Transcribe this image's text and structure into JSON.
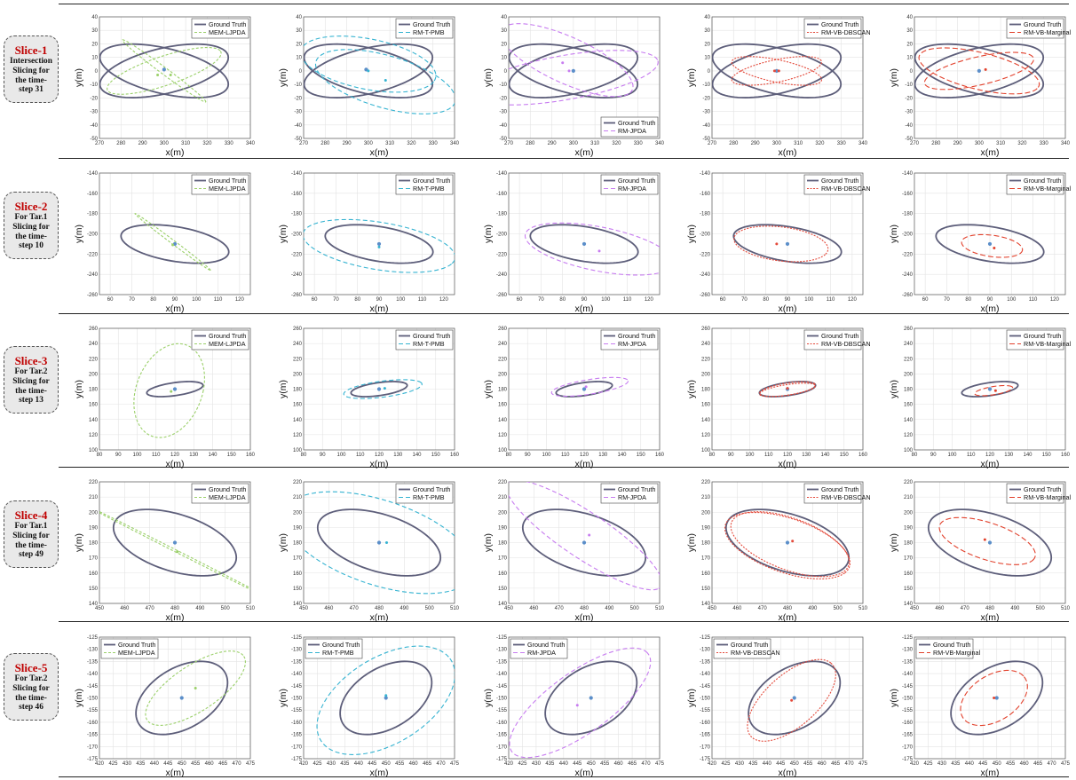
{
  "slices": [
    {
      "title": "Slice-1",
      "lines": [
        "Intersection",
        "Slicing for",
        "the time-",
        "step 31"
      ]
    },
    {
      "title": "Slice-2",
      "lines": [
        "For Tar.1",
        "Slicing for",
        "the time-",
        "step 10"
      ]
    },
    {
      "title": "Slice-3",
      "lines": [
        "For Tar.2",
        "Slicing for",
        "the time-",
        "step 13"
      ]
    },
    {
      "title": "Slice-4",
      "lines": [
        "For Tar.1",
        "Slicing for",
        "the time-",
        "step 49"
      ]
    },
    {
      "title": "Slice-5",
      "lines": [
        "For Tar.2",
        "Slicing for",
        "the time-",
        "step 46"
      ]
    }
  ],
  "colors": {
    "ground_truth": "#5d5e7a",
    "MEM-LJPDA": "#9bd06a",
    "RM-T-PMB": "#35b3d1",
    "RM-JPDA": "#c77cf0",
    "RM-VB-DBSCAN": "#e4493a",
    "RM-VB-Marginal": "#e2412c",
    "center_gt": "#5b8ec9"
  },
  "chart_data": {
    "type": "scatter",
    "xlabel": "x(m)",
    "ylabel": "y(m)",
    "grid": true,
    "methods": [
      {
        "name": "MEM-LJPDA",
        "dash": "3,2"
      },
      {
        "name": "RM-T-PMB",
        "dash": "5,3"
      },
      {
        "name": "RM-JPDA",
        "dash": "5,3"
      },
      {
        "name": "RM-VB-DBSCAN",
        "dash": "2,1.5"
      },
      {
        "name": "RM-VB-Marginal",
        "dash": "6,3"
      }
    ],
    "rows": [
      {
        "xlim": [
          270,
          340
        ],
        "ylim": [
          -50,
          40
        ],
        "xticks": [
          270,
          280,
          290,
          300,
          310,
          320,
          330,
          340
        ],
        "yticks": [
          -50,
          -40,
          -30,
          -20,
          -10,
          0,
          10,
          20,
          30,
          40
        ],
        "ground_truth": [
          {
            "cx": 300,
            "cy": 0,
            "a": 32,
            "b": 16,
            "angle": -25
          },
          {
            "cx": 300,
            "cy": 0,
            "a": 32,
            "b": 16,
            "angle": 25
          }
        ],
        "panels": [
          {
            "ellipses": [
              {
                "cx": 300,
                "cy": 0,
                "a": 30,
                "b": 10,
                "angle": 30
              },
              {
                "cx": 300,
                "cy": 0,
                "a": 30,
                "b": 2,
                "angle": -50
              }
            ],
            "centers": [
              {
                "x": 300,
                "y": 1,
                "gt": true
              },
              {
                "x": 297,
                "y": -3
              },
              {
                "x": 303,
                "y": -3
              }
            ],
            "legend": "top-right"
          },
          {
            "ellipses": [
              {
                "cx": 300,
                "cy": 5,
                "a": 33,
                "b": 18,
                "angle": -22
              },
              {
                "cx": 308,
                "cy": -8,
                "a": 36,
                "b": 18,
                "angle": -30
              }
            ],
            "centers": [
              {
                "x": 299,
                "y": 1,
                "gt": true
              },
              {
                "x": 300,
                "y": 0
              },
              {
                "x": 308,
                "y": -7
              }
            ],
            "legend": "top-right"
          },
          {
            "ellipses": [
              {
                "cx": 297,
                "cy": 8,
                "a": 38,
                "b": 15,
                "angle": -40
              },
              {
                "cx": 296,
                "cy": -5,
                "a": 45,
                "b": 16,
                "angle": 17
              }
            ],
            "centers": [
              {
                "x": 300,
                "y": 0,
                "gt": true
              },
              {
                "x": 298,
                "y": 0
              },
              {
                "x": 295,
                "y": 6
              }
            ],
            "legend": "bottom-right"
          },
          {
            "ellipses": [
              {
                "cx": 300,
                "cy": 0,
                "a": 22,
                "b": 8,
                "angle": -20
              },
              {
                "cx": 300,
                "cy": 0,
                "a": 22,
                "b": 8,
                "angle": 20
              }
            ],
            "centers": [
              {
                "x": 300,
                "y": 0,
                "gt": true
              },
              {
                "x": 299,
                "y": 0
              },
              {
                "x": 301,
                "y": 0
              }
            ],
            "legend": "top-right"
          },
          {
            "ellipses": [
              {
                "cx": 300,
                "cy": 0,
                "a": 30,
                "b": 13,
                "angle": -24
              },
              {
                "cx": 300,
                "cy": 0,
                "a": 27,
                "b": 10,
                "angle": 22
              }
            ],
            "centers": [
              {
                "x": 300,
                "y": 0,
                "gt": true
              },
              {
                "x": 303,
                "y": 1
              }
            ],
            "legend": "top-right"
          }
        ]
      },
      {
        "xlim": [
          55,
          125
        ],
        "ylim": [
          -260,
          -140
        ],
        "xticks": [
          60,
          70,
          80,
          90,
          100,
          110,
          120
        ],
        "yticks": [
          -260,
          -240,
          -220,
          -200,
          -180,
          -160,
          -140
        ],
        "ground_truth": [
          {
            "cx": 90,
            "cy": -210,
            "a": 27,
            "b": 16,
            "angle": -28
          }
        ],
        "panels": [
          {
            "ellipses": [
              {
                "cx": 89,
                "cy": -208,
                "a": 33,
                "b": 1.2,
                "angle": -58
              }
            ],
            "centers": [
              {
                "x": 90,
                "y": -210,
                "gt": true
              },
              {
                "x": 89,
                "y": -211
              }
            ],
            "legend": "top-right"
          },
          {
            "ellipses": [
              {
                "cx": 90,
                "cy": -212,
                "a": 38,
                "b": 22,
                "angle": -27
              }
            ],
            "centers": [
              {
                "x": 90,
                "y": -210,
                "gt": true
              },
              {
                "x": 90,
                "y": -213
              }
            ],
            "legend": "top-right"
          },
          {
            "ellipses": [
              {
                "cx": 97,
                "cy": -215,
                "a": 38,
                "b": 20,
                "angle": -30
              }
            ],
            "centers": [
              {
                "x": 90,
                "y": -210,
                "gt": true
              },
              {
                "x": 97,
                "y": -217
              }
            ],
            "legend": "top-right"
          },
          {
            "ellipses": [
              {
                "cx": 87,
                "cy": -210,
                "a": 23,
                "b": 16,
                "angle": -26
              }
            ],
            "centers": [
              {
                "x": 90,
                "y": -210,
                "gt": true
              },
              {
                "x": 85,
                "y": -210
              }
            ],
            "legend": "top-right"
          },
          {
            "ellipses": [
              {
                "cx": 91,
                "cy": -212,
                "a": 15,
                "b": 10,
                "angle": -27
              }
            ],
            "centers": [
              {
                "x": 90,
                "y": -210,
                "gt": true
              },
              {
                "x": 92,
                "y": -214
              }
            ],
            "legend": "top-right"
          }
        ]
      },
      {
        "xlim": [
          80,
          160
        ],
        "ylim": [
          100,
          260
        ],
        "xticks": [
          80,
          90,
          100,
          110,
          120,
          130,
          140,
          150,
          160
        ],
        "yticks": [
          100,
          120,
          140,
          160,
          180,
          200,
          220,
          240,
          260
        ],
        "ground_truth": [
          {
            "cx": 120,
            "cy": 180,
            "a": 16,
            "b": 8,
            "angle": 25
          }
        ],
        "panels": [
          {
            "ellipses": [
              {
                "cx": 117,
                "cy": 178,
                "a": 18,
                "b": 62,
                "angle": -5
              }
            ],
            "centers": [
              {
                "x": 120,
                "y": 180,
                "gt": true
              },
              {
                "x": 118,
                "y": 177
              }
            ],
            "legend": "top-right"
          },
          {
            "ellipses": [
              {
                "cx": 122,
                "cy": 180,
                "a": 22,
                "b": 10,
                "angle": 22
              }
            ],
            "centers": [
              {
                "x": 120,
                "y": 180,
                "gt": true
              },
              {
                "x": 123,
                "y": 181
              }
            ],
            "legend": "top-right"
          },
          {
            "ellipses": [
              {
                "cx": 123,
                "cy": 183,
                "a": 22,
                "b": 9,
                "angle": 25
              }
            ],
            "centers": [
              {
                "x": 120,
                "y": 180,
                "gt": true
              },
              {
                "x": 121,
                "y": 183
              }
            ],
            "legend": "top-right"
          },
          {
            "ellipses": [
              {
                "cx": 120,
                "cy": 180,
                "a": 16,
                "b": 7.5,
                "angle": 26
              },
              {
                "cx": 120,
                "cy": 179,
                "a": 16,
                "b": 6.5,
                "angle": 24
              }
            ],
            "centers": [
              {
                "x": 120,
                "y": 180,
                "gt": true
              },
              {
                "x": 120,
                "y": 181
              }
            ],
            "legend": "top-right"
          },
          {
            "ellipses": [
              {
                "cx": 122,
                "cy": 178,
                "a": 11,
                "b": 5,
                "angle": 27
              }
            ],
            "centers": [
              {
                "x": 120,
                "y": 180,
                "gt": true
              },
              {
                "x": 123,
                "y": 178
              }
            ],
            "legend": "top-right"
          }
        ]
      },
      {
        "xlim": [
          450,
          510
        ],
        "ylim": [
          140,
          220
        ],
        "xticks": [
          450,
          460,
          470,
          480,
          490,
          500,
          510
        ],
        "yticks": [
          140,
          150,
          160,
          170,
          180,
          190,
          200,
          210,
          220
        ],
        "ground_truth": [
          {
            "cx": 480,
            "cy": 180,
            "a": 28,
            "b": 17,
            "angle": -38
          }
        ],
        "panels": [
          {
            "ellipses": [
              {
                "cx": 481,
                "cy": 174,
                "a": 47,
                "b": 0.6,
                "angle": -40
              }
            ],
            "centers": [
              {
                "x": 480,
                "y": 180,
                "gt": true
              },
              {
                "x": 481,
                "y": 174
              }
            ],
            "legend": "top-right"
          },
          {
            "ellipses": [
              {
                "cx": 480,
                "cy": 180,
                "a": 44,
                "b": 25,
                "angle": -38
              }
            ],
            "centers": [
              {
                "x": 480,
                "y": 180,
                "gt": true
              },
              {
                "x": 483,
                "y": 180
              }
            ],
            "legend": "top-right"
          },
          {
            "ellipses": [
              {
                "cx": 480,
                "cy": 185,
                "a": 46,
                "b": 12,
                "angle": -50
              }
            ],
            "centers": [
              {
                "x": 480,
                "y": 180,
                "gt": true
              },
              {
                "x": 482,
                "y": 185
              }
            ],
            "legend": "top-right"
          },
          {
            "ellipses": [
              {
                "cx": 480,
                "cy": 178,
                "a": 29,
                "b": 16,
                "angle": -38
              },
              {
                "cx": 481,
                "cy": 179,
                "a": 28,
                "b": 15,
                "angle": -40
              }
            ],
            "centers": [
              {
                "x": 480,
                "y": 180,
                "gt": true
              },
              {
                "x": 482,
                "y": 181
              }
            ],
            "legend": "top-right"
          },
          {
            "ellipses": [
              {
                "cx": 479,
                "cy": 181,
                "a": 22,
                "b": 11,
                "angle": -35
              }
            ],
            "centers": [
              {
                "x": 480,
                "y": 180,
                "gt": true
              },
              {
                "x": 478,
                "y": 182
              }
            ],
            "legend": "top-right"
          }
        ]
      },
      {
        "xlim": [
          420,
          475
        ],
        "ylim": [
          -175,
          -125
        ],
        "xticks": [
          420,
          425,
          430,
          435,
          440,
          445,
          450,
          455,
          460,
          465,
          470,
          475
        ],
        "yticks": [
          -175,
          -170,
          -165,
          -160,
          -155,
          -150,
          -145,
          -140,
          -135,
          -130,
          -125
        ],
        "ground_truth": [
          {
            "cx": 450,
            "cy": -150,
            "a": 19,
            "b": 12,
            "angle": 38
          }
        ],
        "panels": [
          {
            "ellipses": [
              {
                "cx": 455,
                "cy": -146,
                "a": 22,
                "b": 9,
                "angle": 38
              }
            ],
            "centers": [
              {
                "x": 450,
                "y": -150,
                "gt": true
              },
              {
                "x": 455,
                "y": -146
              }
            ],
            "legend": "top-left"
          },
          {
            "ellipses": [
              {
                "cx": 450,
                "cy": -151,
                "a": 29,
                "b": 17,
                "angle": 38
              }
            ],
            "centers": [
              {
                "x": 450,
                "y": -150,
                "gt": true
              },
              {
                "x": 450,
                "y": -149
              }
            ],
            "legend": "top-left"
          },
          {
            "ellipses": [
              {
                "cx": 446,
                "cy": -152,
                "a": 32,
                "b": 12,
                "angle": 40
              }
            ],
            "centers": [
              {
                "x": 450,
                "y": -150,
                "gt": true
              },
              {
                "x": 445,
                "y": -153
              }
            ],
            "legend": "top-left"
          },
          {
            "ellipses": [
              {
                "cx": 449,
                "cy": -151,
                "a": 21,
                "b": 10,
                "angle": 47
              }
            ],
            "centers": [
              {
                "x": 450,
                "y": -150,
                "gt": true
              },
              {
                "x": 449,
                "y": -151
              }
            ],
            "legend": "top-left"
          },
          {
            "ellipses": [
              {
                "cx": 449,
                "cy": -150,
                "a": 14,
                "b": 9,
                "angle": 40
              }
            ],
            "centers": [
              {
                "x": 450,
                "y": -150,
                "gt": true
              },
              {
                "x": 449,
                "y": -150
              }
            ],
            "legend": "top-left"
          }
        ]
      }
    ],
    "legend_gt": "Ground Truth"
  }
}
